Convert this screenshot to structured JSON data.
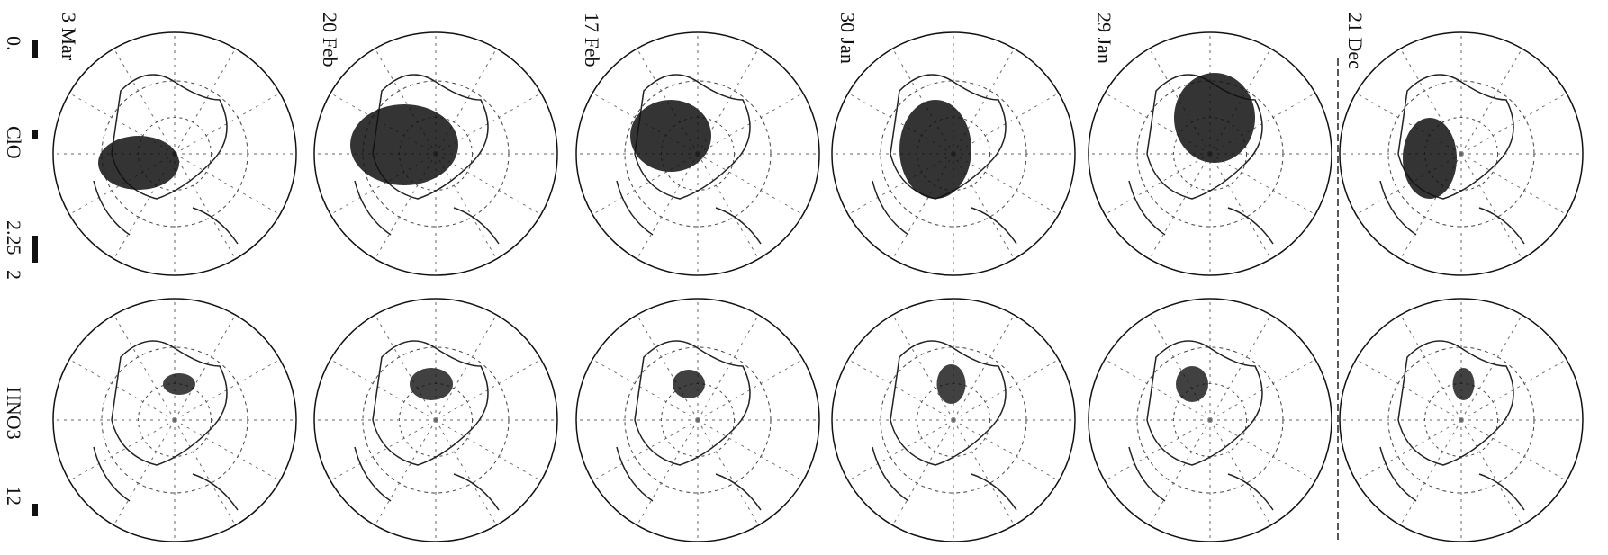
{
  "panels": [
    {
      "label": "3 Mar"
    },
    {
      "label": "20 Feb"
    },
    {
      "label": "17 Feb"
    },
    {
      "label": "30 Jan"
    },
    {
      "label": "29 Jan"
    },
    {
      "label": "21 Dec"
    }
  ],
  "legend": {
    "labels": [
      "0.",
      "ClO",
      "2.25",
      "2",
      "HNO3",
      "12"
    ]
  }
}
